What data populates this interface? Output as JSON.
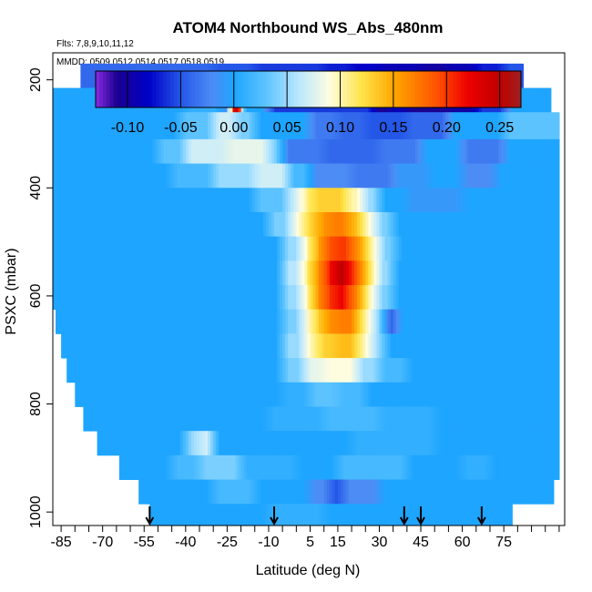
{
  "chart_data": {
    "type": "heatmap",
    "title": "ATOM4 Northbound WS_Abs_480nm",
    "subtitle_flights": "Flts: 7,8,9,10,11,12",
    "subtitle_dates": "MMDD: 0509,0512,0514,0517,0518,0519",
    "xlabel": "Latitude (deg N)",
    "ylabel": "PSXC (mbar)",
    "xlim": [
      -88,
      97
    ],
    "ylim": [
      1025,
      150
    ],
    "x_ticks": [
      -85,
      -70,
      -55,
      -40,
      -25,
      -10,
      5,
      15,
      30,
      45,
      60,
      75
    ],
    "x_tick_labels": [
      "-85",
      "-70",
      "-55",
      "-40",
      "-25",
      "-10",
      "5",
      "15",
      "30",
      "45",
      "60",
      "75"
    ],
    "x_minor_step": 5,
    "y_ticks": [
      200,
      400,
      600,
      800,
      1000
    ],
    "y_tick_labels": [
      "200",
      "400",
      "600",
      "800",
      "1000"
    ],
    "colorbar": {
      "range": [
        -0.13,
        0.27
      ],
      "ticks": [
        -0.1,
        -0.05,
        0.0,
        0.05,
        0.1,
        0.15,
        0.2,
        0.25
      ],
      "tick_labels": [
        "-0.10",
        "-0.05",
        "0.00",
        "0.05",
        "0.10",
        "0.15",
        "0.20",
        "0.25"
      ],
      "stops": [
        {
          "v": -0.13,
          "c": "#8a2be2"
        },
        {
          "v": -0.11,
          "c": "#1a0090"
        },
        {
          "v": -0.08,
          "c": "#0000c8"
        },
        {
          "v": -0.05,
          "c": "#2457e8"
        },
        {
          "v": -0.02,
          "c": "#4d8cf5"
        },
        {
          "v": 0.0,
          "c": "#1ea5ff"
        },
        {
          "v": 0.03,
          "c": "#5cc3ff"
        },
        {
          "v": 0.06,
          "c": "#b8e6ff"
        },
        {
          "v": 0.09,
          "c": "#fffde0"
        },
        {
          "v": 0.12,
          "c": "#ffe44a"
        },
        {
          "v": 0.15,
          "c": "#ffa800"
        },
        {
          "v": 0.19,
          "c": "#ff5500"
        },
        {
          "v": 0.22,
          "c": "#ee0000"
        },
        {
          "v": 0.25,
          "c": "#c00000"
        },
        {
          "v": 0.27,
          "c": "#9e2020"
        }
      ]
    },
    "arrows_latitude": [
      -53,
      -8,
      39,
      45,
      67
    ],
    "layers": [
      {
        "p0": 170,
        "p1": 215,
        "lat0": -78,
        "lat1": 82,
        "segments": [
          [
            -78,
            -30,
            -0.04
          ],
          [
            -30,
            -15,
            -0.05
          ],
          [
            -15,
            0,
            -0.06
          ],
          [
            0,
            10,
            -0.06
          ],
          [
            10,
            20,
            -0.07
          ],
          [
            20,
            30,
            -0.08
          ],
          [
            30,
            45,
            -0.09
          ],
          [
            45,
            55,
            -0.1
          ],
          [
            55,
            65,
            -0.09
          ],
          [
            65,
            75,
            -0.07
          ],
          [
            75,
            82,
            -0.05
          ]
        ]
      },
      {
        "p0": 215,
        "p1": 260,
        "lat0": -88,
        "lat1": 92,
        "segments": [
          [
            -88,
            -40,
            0.0
          ],
          [
            -40,
            -27,
            0.01
          ],
          [
            -27,
            -24,
            -0.02
          ],
          [
            -24,
            -23.5,
            0.18
          ],
          [
            -23.5,
            -21.5,
            0.25
          ],
          [
            -21.5,
            -20.5,
            0.18
          ],
          [
            -20.5,
            -10,
            0.0
          ],
          [
            -10,
            10,
            -0.06
          ],
          [
            10,
            28,
            -0.06
          ],
          [
            28,
            33,
            -0.11
          ],
          [
            33,
            40,
            -0.09
          ],
          [
            40,
            55,
            -0.11
          ],
          [
            55,
            65,
            -0.1
          ],
          [
            65,
            76,
            -0.06
          ],
          [
            76,
            92,
            0.0
          ]
        ]
      },
      {
        "p0": 260,
        "p1": 310,
        "lat0": -88,
        "lat1": 95,
        "segments": [
          [
            -88,
            -42,
            0.0
          ],
          [
            -42,
            -30,
            0.03
          ],
          [
            -30,
            -22,
            0.07
          ],
          [
            -22,
            -15,
            0.04
          ],
          [
            -15,
            5,
            0.0
          ],
          [
            5,
            15,
            -0.03
          ],
          [
            15,
            25,
            -0.04
          ],
          [
            25,
            40,
            -0.05
          ],
          [
            40,
            55,
            -0.04
          ],
          [
            55,
            75,
            0.0
          ],
          [
            75,
            95,
            0.03
          ]
        ]
      },
      {
        "p0": 310,
        "p1": 355,
        "lat0": -88,
        "lat1": 95,
        "segments": [
          [
            -88,
            -50,
            0.0
          ],
          [
            -50,
            -40,
            0.03
          ],
          [
            -40,
            -25,
            0.07
          ],
          [
            -25,
            -10,
            0.08
          ],
          [
            -10,
            -5,
            0.04
          ],
          [
            -5,
            10,
            -0.03
          ],
          [
            10,
            30,
            -0.04
          ],
          [
            30,
            45,
            -0.03
          ],
          [
            45,
            60,
            0.0
          ],
          [
            60,
            75,
            -0.03
          ],
          [
            75,
            95,
            0.0
          ]
        ]
      },
      {
        "p0": 355,
        "p1": 400,
        "lat0": -88,
        "lat1": 95,
        "segments": [
          [
            -88,
            -45,
            0.0
          ],
          [
            -45,
            -30,
            0.02
          ],
          [
            -30,
            -15,
            0.05
          ],
          [
            -15,
            -3,
            0.07
          ],
          [
            -3,
            5,
            0.02
          ],
          [
            5,
            20,
            -0.02
          ],
          [
            20,
            35,
            -0.03
          ],
          [
            35,
            48,
            -0.01
          ],
          [
            48,
            60,
            0.0
          ],
          [
            60,
            72,
            -0.02
          ],
          [
            72,
            95,
            0.0
          ]
        ]
      },
      {
        "p0": 400,
        "p1": 445,
        "lat0": -88,
        "lat1": 95,
        "segments": [
          [
            -88,
            -15,
            0.0
          ],
          [
            -15,
            -3,
            0.03
          ],
          [
            -3,
            2,
            0.07
          ],
          [
            2,
            6,
            0.11
          ],
          [
            6,
            18,
            0.13
          ],
          [
            18,
            24,
            0.1
          ],
          [
            24,
            30,
            0.05
          ],
          [
            30,
            40,
            0.0
          ],
          [
            40,
            60,
            -0.01
          ],
          [
            60,
            75,
            0.0
          ],
          [
            75,
            95,
            0.0
          ]
        ]
      },
      {
        "p0": 445,
        "p1": 490,
        "lat0": -88,
        "lat1": 95,
        "segments": [
          [
            -88,
            -10,
            0.0
          ],
          [
            -10,
            -2,
            0.04
          ],
          [
            -2,
            3,
            0.09
          ],
          [
            3,
            8,
            0.13
          ],
          [
            8,
            12,
            0.16
          ],
          [
            12,
            19,
            0.17
          ],
          [
            19,
            24,
            0.14
          ],
          [
            24,
            29,
            0.09
          ],
          [
            29,
            35,
            0.04
          ],
          [
            35,
            45,
            0.0
          ],
          [
            45,
            95,
            0.0
          ]
        ]
      },
      {
        "p0": 490,
        "p1": 535,
        "lat0": -88,
        "lat1": 95,
        "segments": [
          [
            -88,
            -5,
            0.0
          ],
          [
            -5,
            2,
            0.05
          ],
          [
            2,
            6,
            0.1
          ],
          [
            6,
            10,
            0.15
          ],
          [
            10,
            14,
            0.19
          ],
          [
            14,
            20,
            0.2
          ],
          [
            20,
            25,
            0.16
          ],
          [
            25,
            30,
            0.1
          ],
          [
            30,
            36,
            0.04
          ],
          [
            36,
            45,
            0.0
          ],
          [
            45,
            95,
            0.0
          ]
        ]
      },
      {
        "p0": 535,
        "p1": 580,
        "lat0": -88,
        "lat1": 95,
        "segments": [
          [
            -88,
            -5,
            0.0
          ],
          [
            -5,
            2,
            0.06
          ],
          [
            2,
            6,
            0.11
          ],
          [
            6,
            10,
            0.16
          ],
          [
            10,
            14,
            0.21
          ],
          [
            14,
            19,
            0.25
          ],
          [
            19,
            24,
            0.19
          ],
          [
            24,
            29,
            0.12
          ],
          [
            29,
            35,
            0.05
          ],
          [
            35,
            42,
            0.0
          ],
          [
            42,
            95,
            0.0
          ]
        ]
      },
      {
        "p0": 580,
        "p1": 625,
        "lat0": -88,
        "lat1": 95,
        "segments": [
          [
            -88,
            -5,
            0.0
          ],
          [
            -5,
            2,
            0.05
          ],
          [
            2,
            6,
            0.1
          ],
          [
            6,
            10,
            0.16
          ],
          [
            10,
            14,
            0.2
          ],
          [
            14,
            19,
            0.22
          ],
          [
            19,
            24,
            0.17
          ],
          [
            24,
            29,
            0.1
          ],
          [
            29,
            35,
            0.04
          ],
          [
            35,
            42,
            0.0
          ],
          [
            42,
            95,
            0.0
          ]
        ]
      },
      {
        "p0": 625,
        "p1": 670,
        "lat0": -87,
        "lat1": 95,
        "segments": [
          [
            -87,
            -5,
            0.0
          ],
          [
            -5,
            2,
            0.04
          ],
          [
            2,
            6,
            0.09
          ],
          [
            6,
            10,
            0.13
          ],
          [
            10,
            14,
            0.16
          ],
          [
            14,
            22,
            0.17
          ],
          [
            22,
            27,
            0.11
          ],
          [
            27,
            32,
            0.05
          ],
          [
            32,
            36,
            -0.05
          ],
          [
            36,
            45,
            0.0
          ],
          [
            45,
            95,
            0.0
          ]
        ]
      },
      {
        "p0": 670,
        "p1": 715,
        "lat0": -85,
        "lat1": 95,
        "segments": [
          [
            -85,
            -5,
            0.0
          ],
          [
            -5,
            3,
            0.05
          ],
          [
            3,
            8,
            0.1
          ],
          [
            8,
            14,
            0.13
          ],
          [
            14,
            22,
            0.14
          ],
          [
            22,
            27,
            0.1
          ],
          [
            27,
            32,
            0.05
          ],
          [
            32,
            40,
            0.0
          ],
          [
            40,
            95,
            0.0
          ]
        ]
      },
      {
        "p0": 715,
        "p1": 760,
        "lat0": -83,
        "lat1": 95,
        "segments": [
          [
            -83,
            -5,
            0.0
          ],
          [
            -5,
            3,
            0.04
          ],
          [
            3,
            10,
            0.08
          ],
          [
            10,
            22,
            0.09
          ],
          [
            22,
            30,
            0.05
          ],
          [
            30,
            40,
            0.02
          ],
          [
            40,
            95,
            0.0
          ]
        ]
      },
      {
        "p0": 760,
        "p1": 805,
        "lat0": -80,
        "lat1": 95,
        "segments": [
          [
            -80,
            -5,
            0.0
          ],
          [
            -5,
            5,
            0.01
          ],
          [
            5,
            15,
            0.03
          ],
          [
            15,
            25,
            0.02
          ],
          [
            25,
            40,
            0.0
          ],
          [
            40,
            95,
            0.0
          ]
        ]
      },
      {
        "p0": 805,
        "p1": 850,
        "lat0": -77,
        "lat1": 95,
        "segments": [
          [
            -77,
            -10,
            0.0
          ],
          [
            -10,
            10,
            0.01
          ],
          [
            10,
            30,
            0.02
          ],
          [
            30,
            50,
            0.01
          ],
          [
            50,
            95,
            0.0
          ]
        ]
      },
      {
        "p0": 850,
        "p1": 895,
        "lat0": -72,
        "lat1": 95,
        "segments": [
          [
            -72,
            -40,
            0.0
          ],
          [
            -40,
            -35,
            0.05
          ],
          [
            -35,
            -30,
            0.07
          ],
          [
            -30,
            -10,
            0.0
          ],
          [
            -10,
            20,
            0.0
          ],
          [
            20,
            50,
            0.01
          ],
          [
            50,
            95,
            0.0
          ]
        ]
      },
      {
        "p0": 895,
        "p1": 940,
        "lat0": -64,
        "lat1": 95,
        "segments": [
          [
            -64,
            -45,
            0.0
          ],
          [
            -45,
            -35,
            0.02
          ],
          [
            -35,
            -20,
            0.04
          ],
          [
            -20,
            0,
            0.01
          ],
          [
            0,
            15,
            0.0
          ],
          [
            15,
            40,
            0.02
          ],
          [
            40,
            60,
            0.0
          ],
          [
            60,
            70,
            0.01
          ],
          [
            70,
            95,
            0.0
          ]
        ]
      },
      {
        "p0": 940,
        "p1": 985,
        "lat0": -57,
        "lat1": 93,
        "segments": [
          [
            -57,
            -30,
            0.0
          ],
          [
            -30,
            -15,
            0.02
          ],
          [
            -15,
            5,
            0.0
          ],
          [
            5,
            12,
            -0.02
          ],
          [
            12,
            17,
            -0.05
          ],
          [
            17,
            30,
            -0.02
          ],
          [
            30,
            60,
            0.0
          ],
          [
            60,
            93,
            0.0
          ]
        ]
      },
      {
        "p0": 985,
        "p1": 1025,
        "lat0": -53,
        "lat1": 78,
        "segments": [
          [
            -53,
            -10,
            0.0
          ],
          [
            -10,
            10,
            0.01
          ],
          [
            10,
            30,
            0.0
          ],
          [
            30,
            45,
            0.0
          ],
          [
            45,
            78,
            0.0
          ]
        ]
      }
    ]
  }
}
